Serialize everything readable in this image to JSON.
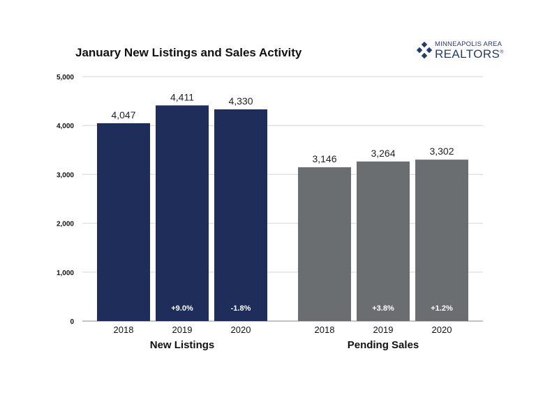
{
  "logo": {
    "top_text": "MINNEAPOLIS AREA",
    "main_text": "REALTORS",
    "registered_mark": "®",
    "icon": "diamond-cluster-logo-icon"
  },
  "chart_data": {
    "type": "bar",
    "title": "January New Listings and Sales Activity",
    "xlabel": "",
    "ylabel": "",
    "ylim": [
      0,
      5000
    ],
    "yticks": [
      0,
      1000,
      2000,
      3000,
      4000,
      5000
    ],
    "ytick_labels": [
      "0",
      "1,000",
      "2,000",
      "3,000",
      "4,000",
      "5,000"
    ],
    "grid": true,
    "legend": "none",
    "groups": [
      {
        "name": "New Listings",
        "color": "#1f2d5a",
        "categories": [
          "2018",
          "2019",
          "2020"
        ],
        "values": [
          4047,
          4411,
          4330
        ],
        "value_labels": [
          "4,047",
          "4,411",
          "4,330"
        ],
        "change_labels": [
          "",
          "+9.0%",
          "-1.8%"
        ]
      },
      {
        "name": "Pending Sales",
        "color": "#6b6e70",
        "categories": [
          "2018",
          "2019",
          "2020"
        ],
        "values": [
          3146,
          3264,
          3302
        ],
        "value_labels": [
          "3,146",
          "3,264",
          "3,302"
        ],
        "change_labels": [
          "",
          "+3.8%",
          "+1.2%"
        ]
      }
    ]
  }
}
